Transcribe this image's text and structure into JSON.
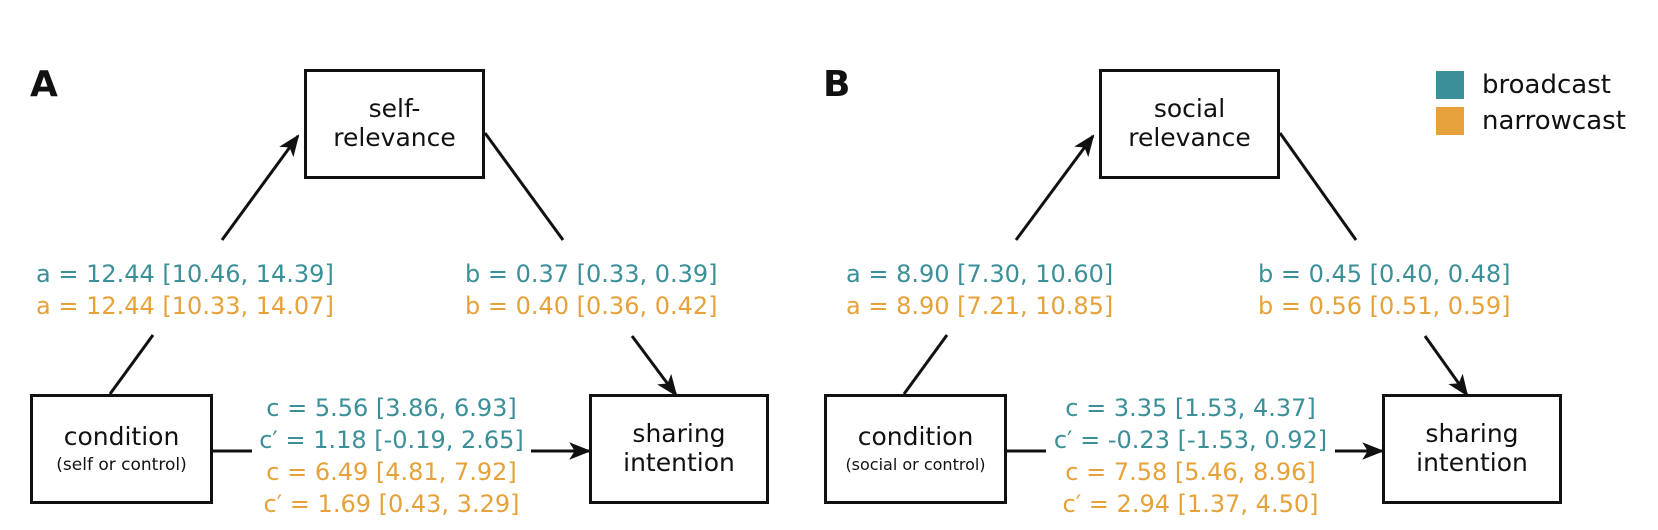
{
  "legend": {
    "items": [
      {
        "label": "broadcast",
        "color": "#3a8f98"
      },
      {
        "label": "narrowcast",
        "color": "#e6a13a"
      }
    ]
  },
  "panels": [
    {
      "letter": "A",
      "mediator": [
        "self-",
        "relevance"
      ],
      "condition": {
        "main": "condition",
        "sub": "(self or control)"
      },
      "outcome": [
        "sharing",
        "intention"
      ],
      "a_path": {
        "broadcast": "a = 12.44 [10.46, 14.39]",
        "narrowcast": "a = 12.44 [10.33, 14.07]"
      },
      "b_path": {
        "broadcast": "b = 0.37 [0.33, 0.39]",
        "narrowcast": "b = 0.40 [0.36, 0.42]"
      },
      "c_path": [
        {
          "group": "broadcast",
          "text": "c = 5.56 [3.86, 6.93]"
        },
        {
          "group": "broadcast",
          "text": "c′ = 1.18 [-0.19, 2.65]"
        },
        {
          "group": "narrowcast",
          "text": "c = 6.49 [4.81, 7.92]"
        },
        {
          "group": "narrowcast",
          "text": "c′ = 1.69 [0.43, 3.29]"
        }
      ]
    },
    {
      "letter": "B",
      "mediator": [
        "social",
        "relevance"
      ],
      "condition": {
        "main": "condition",
        "sub": "(social or control)"
      },
      "outcome": [
        "sharing",
        "intention"
      ],
      "a_path": {
        "broadcast": "a = 8.90 [7.30, 10.60]",
        "narrowcast": "a = 8.90 [7.21, 10.85]"
      },
      "b_path": {
        "broadcast": "b = 0.45 [0.40, 0.48]",
        "narrowcast": "b = 0.56 [0.51, 0.59]"
      },
      "c_path": [
        {
          "group": "broadcast",
          "text": "c = 3.35 [1.53, 4.37]"
        },
        {
          "group": "broadcast",
          "text": "c′ = -0.23 [-1.53, 0.92]"
        },
        {
          "group": "narrowcast",
          "text": "c = 7.58 [5.46, 8.96]"
        },
        {
          "group": "narrowcast",
          "text": "c′ = 2.94 [1.37, 4.50]"
        }
      ]
    }
  ]
}
